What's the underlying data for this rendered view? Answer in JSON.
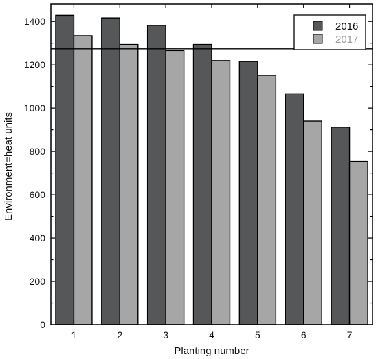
{
  "chart_data": {
    "type": "bar",
    "xlabel": "Planting number",
    "ylabel": "Environment=heat units",
    "categories": [
      "1",
      "2",
      "3",
      "4",
      "5",
      "6",
      "7"
    ],
    "series": [
      {
        "name": "2016",
        "color": "#555759",
        "values": [
          1428,
          1416,
          1382,
          1294,
          1216,
          1066,
          912
        ]
      },
      {
        "name": "2017",
        "color": "#a6a6a6",
        "values": [
          1334,
          1294,
          1266,
          1220,
          1150,
          940,
          754
        ]
      }
    ],
    "reference_line": {
      "y": 1274
    },
    "ylim": [
      0,
      1480
    ],
    "yticks": [
      0,
      200,
      400,
      600,
      800,
      1000,
      1200,
      1400
    ],
    "legend_position": "top-right",
    "legend_text_colors": [
      "#111111",
      "#9a9a9a"
    ],
    "grid": false
  }
}
